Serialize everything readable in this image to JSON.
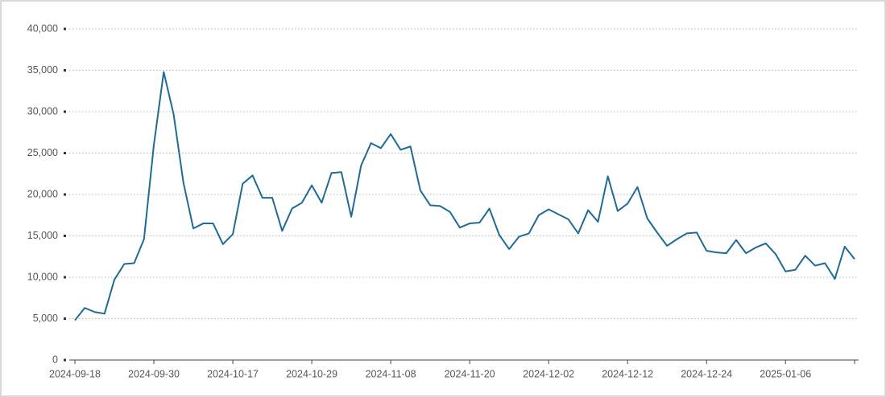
{
  "chart_data": {
    "type": "line",
    "categories": [
      "2024-09-18",
      null,
      null,
      null,
      null,
      null,
      null,
      null,
      "2024-09-30",
      null,
      null,
      null,
      null,
      null,
      null,
      null,
      "2024-10-17",
      null,
      null,
      null,
      null,
      null,
      null,
      null,
      "2024-10-29",
      null,
      null,
      null,
      null,
      null,
      null,
      null,
      "2024-11-08",
      null,
      null,
      null,
      null,
      null,
      null,
      null,
      "2024-11-20",
      null,
      null,
      null,
      null,
      null,
      null,
      null,
      "2024-12-02",
      null,
      null,
      null,
      null,
      null,
      null,
      null,
      "2024-12-12",
      null,
      null,
      null,
      null,
      null,
      null,
      null,
      "2024-12-24",
      null,
      null,
      null,
      null,
      null,
      null,
      null,
      "2025-01-06",
      null,
      null,
      null,
      null,
      null,
      null,
      null
    ],
    "series": [
      {
        "color": "#1f6a96",
        "values": [
          4800,
          6300,
          5800,
          5600,
          9700,
          11600,
          11700,
          14600,
          26000,
          34800,
          29700,
          21400,
          15900,
          16500,
          16500,
          14000,
          15200,
          21300,
          22300,
          19600,
          19600,
          15600,
          18300,
          19000,
          21100,
          19000,
          22600,
          22700,
          17300,
          23500,
          26200,
          25600,
          27300,
          25400,
          25800,
          20500,
          18700,
          18600,
          17900,
          16000,
          16500,
          16600,
          18300,
          15100,
          13400,
          14900,
          15300,
          17500,
          18200,
          17600,
          17000,
          15300,
          18100,
          16700,
          22200,
          18000,
          18900,
          20900,
          17100,
          15400,
          13800,
          14600,
          15300,
          15400,
          13200,
          13000,
          12900,
          14500,
          12900,
          13600,
          14100,
          12800,
          10700,
          10900,
          12600,
          11400,
          11700,
          9800,
          13700,
          12200
        ]
      }
    ],
    "ylim": [
      0,
      40000
    ],
    "yticks": [
      0,
      {
        "value": 5000,
        "label": "5,000"
      },
      {
        "value": 10000,
        "label": "10,000"
      },
      {
        "value": 15000,
        "label": "15,000"
      },
      {
        "value": 20000,
        "label": "20,000"
      },
      {
        "value": 25000,
        "label": "25,000"
      },
      {
        "value": 30000,
        "label": "30,000"
      },
      {
        "value": 35000,
        "label": "35,000"
      },
      {
        "value": 40000,
        "label": "40,000"
      }
    ],
    "grid": true
  }
}
